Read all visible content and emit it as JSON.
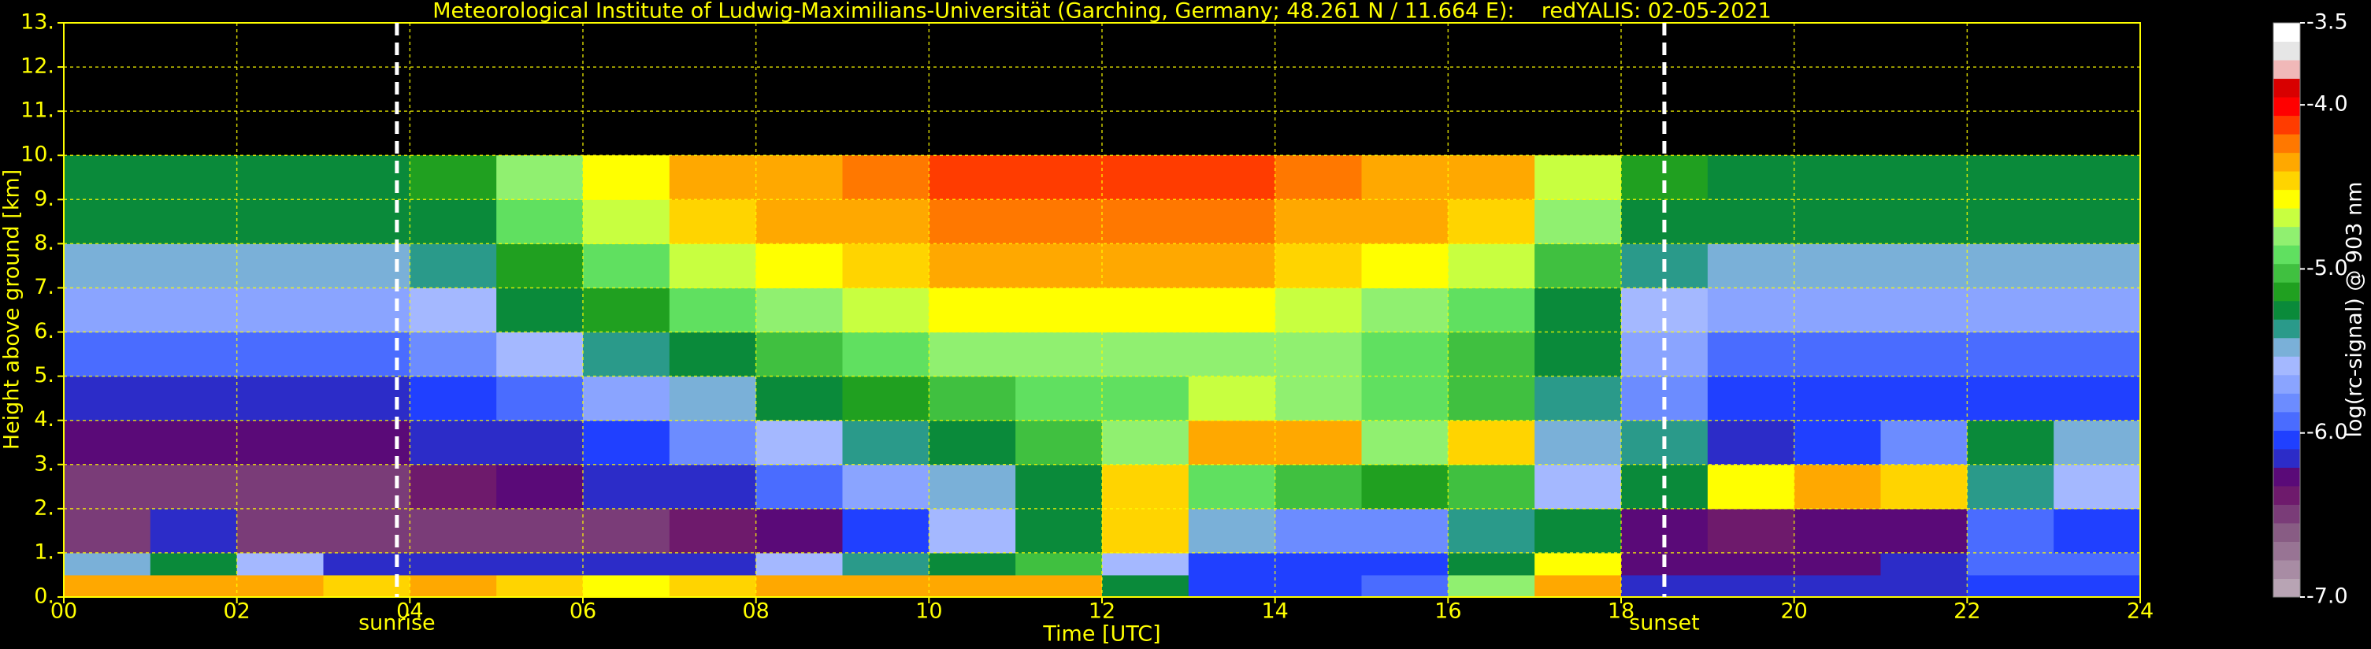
{
  "chart_data": {
    "type": "heatmap",
    "title": "Meteorological Institute of Ludwig-Maximilians-Universität (Garching, Germany; 48.261 N / 11.664 E):    redYALIS: 02-05-2021",
    "x_label": "Time [UTC]",
    "y_label": "Height above ground [km]",
    "colorbar_label": "log(rc-signal) @ 903 nm",
    "xlim": [
      0,
      24
    ],
    "ylim": [
      0,
      13
    ],
    "xticks": [
      {
        "value": 0,
        "label": "00"
      },
      {
        "value": 2,
        "label": "02"
      },
      {
        "value": 4,
        "label": "04"
      },
      {
        "value": 6,
        "label": "06"
      },
      {
        "value": 8,
        "label": "08"
      },
      {
        "value": 10,
        "label": "10"
      },
      {
        "value": 12,
        "label": "12"
      },
      {
        "value": 14,
        "label": "14"
      },
      {
        "value": 16,
        "label": "16"
      },
      {
        "value": 18,
        "label": "18"
      },
      {
        "value": 20,
        "label": "20"
      },
      {
        "value": 22,
        "label": "22"
      },
      {
        "value": 24,
        "label": "24"
      }
    ],
    "yticks": [
      {
        "value": 0,
        "label": "0."
      },
      {
        "value": 1,
        "label": "1."
      },
      {
        "value": 2,
        "label": "2."
      },
      {
        "value": 3,
        "label": "3."
      },
      {
        "value": 4,
        "label": "4."
      },
      {
        "value": 5,
        "label": "5."
      },
      {
        "value": 6,
        "label": "6."
      },
      {
        "value": 7,
        "label": "7."
      },
      {
        "value": 8,
        "label": "8."
      },
      {
        "value": 9,
        "label": "9."
      },
      {
        "value": 10,
        "label": "10."
      },
      {
        "value": 11,
        "label": "11."
      },
      {
        "value": 12,
        "label": "12."
      },
      {
        "value": 13,
        "label": "13."
      }
    ],
    "grid": true,
    "zlim": [
      -7,
      -3.5
    ],
    "zticks": [
      {
        "value": -7,
        "label": "-7.0"
      },
      {
        "value": -6,
        "label": "-6.0"
      },
      {
        "value": -5,
        "label": "-5.0"
      },
      {
        "value": -4,
        "label": "-4.0"
      },
      {
        "value": -3.5,
        "label": "-3.5"
      }
    ],
    "colorscale": [
      "#b8a4b4",
      "#a88ca4",
      "#987494",
      "#885c84",
      "#7a3c78",
      "#6e1a6c",
      "#5a0a78",
      "#2c2cc8",
      "#2040ff",
      "#4a6cff",
      "#6c8cff",
      "#8aa4ff",
      "#a4b8ff",
      "#7ab0d8",
      "#2a9a8a",
      "#0a8a3a",
      "#20a020",
      "#40c040",
      "#60e060",
      "#90f070",
      "#c8ff40",
      "#ffff00",
      "#ffd400",
      "#ffa800",
      "#ff7800",
      "#ff3c00",
      "#ff0000",
      "#d80000",
      "#f0b8b8",
      "#e6e6e6",
      "#ffffff"
    ],
    "x_bins": [
      0,
      1,
      2,
      3,
      4,
      5,
      6,
      7,
      8,
      9,
      10,
      11,
      12,
      13,
      14,
      15,
      16,
      17,
      18,
      19,
      20,
      21,
      22,
      23,
      24
    ],
    "y_bins": [
      0,
      0.5,
      1,
      2,
      3,
      4,
      5,
      6,
      7,
      8,
      9,
      10
    ],
    "values": [
      [
        -4.3,
        -4.3,
        -4.4,
        -4.5,
        -4.4,
        -4.5,
        -4.6,
        -4.5,
        -4.4,
        -4.3,
        -4.3,
        -4.4,
        -5.2,
        -6.0,
        -6.0,
        -5.9,
        -4.8,
        -4.4,
        -6.1,
        -6.2,
        -6.1,
        -6.1,
        -6.0,
        -6.0
      ],
      [
        -5.5,
        -5.3,
        -5.6,
        -6.2,
        -6.1,
        -6.2,
        -6.2,
        -6.1,
        -5.6,
        -5.4,
        -5.2,
        -5.0,
        -5.6,
        -6.0,
        -6.0,
        -6.0,
        -5.3,
        -4.6,
        -6.3,
        -6.3,
        -6.3,
        -6.2,
        -5.9,
        -5.9
      ],
      [
        -6.5,
        -6.2,
        -6.5,
        -6.5,
        -6.5,
        -6.5,
        -6.5,
        -6.4,
        -6.3,
        -6.0,
        -5.6,
        -5.2,
        -4.5,
        -5.5,
        -5.8,
        -5.8,
        -5.4,
        -5.2,
        -6.3,
        -6.4,
        -6.3,
        -6.3,
        -5.9,
        -6.0
      ],
      [
        -6.5,
        -6.5,
        -6.5,
        -6.5,
        -6.4,
        -6.3,
        -6.2,
        -6.1,
        -5.9,
        -5.7,
        -5.5,
        -5.3,
        -4.5,
        -4.9,
        -5.0,
        -5.1,
        -5.0,
        -5.6,
        -5.3,
        -4.6,
        -4.4,
        -4.5,
        -5.4,
        -5.6
      ],
      [
        -6.3,
        -6.3,
        -6.3,
        -6.3,
        -6.2,
        -6.1,
        -6.0,
        -5.8,
        -5.6,
        -5.4,
        -5.2,
        -5.0,
        -4.8,
        -4.3,
        -4.3,
        -4.8,
        -4.5,
        -5.5,
        -5.4,
        -6.1,
        -6.0,
        -5.8,
        -5.3,
        -5.5
      ],
      [
        -6.1,
        -6.1,
        -6.1,
        -6.1,
        -6.0,
        -5.9,
        -5.7,
        -5.5,
        -5.3,
        -5.1,
        -5.0,
        -4.9,
        -4.9,
        -4.7,
        -4.8,
        -4.9,
        -5.0,
        -5.4,
        -5.8,
        -6.0,
        -6.0,
        -6.0,
        -6.0,
        -6.0
      ],
      [
        -5.9,
        -5.9,
        -5.9,
        -5.9,
        -5.8,
        -5.6,
        -5.4,
        -5.2,
        -5.0,
        -4.9,
        -4.8,
        -4.8,
        -4.8,
        -4.8,
        -4.8,
        -4.9,
        -5.0,
        -5.3,
        -5.7,
        -5.9,
        -5.9,
        -5.9,
        -5.9,
        -5.9
      ],
      [
        -5.7,
        -5.7,
        -5.7,
        -5.7,
        -5.6,
        -5.3,
        -5.1,
        -4.9,
        -4.8,
        -4.7,
        -4.6,
        -4.6,
        -4.6,
        -4.6,
        -4.7,
        -4.8,
        -4.9,
        -5.2,
        -5.6,
        -5.7,
        -5.7,
        -5.7,
        -5.7,
        -5.7
      ],
      [
        -5.5,
        -5.5,
        -5.5,
        -5.5,
        -5.4,
        -5.1,
        -4.9,
        -4.7,
        -4.6,
        -4.5,
        -4.4,
        -4.4,
        -4.4,
        -4.4,
        -4.5,
        -4.6,
        -4.7,
        -5.0,
        -5.4,
        -5.5,
        -5.5,
        -5.5,
        -5.5,
        -5.5
      ],
      [
        -5.3,
        -5.3,
        -5.3,
        -5.3,
        -5.2,
        -4.9,
        -4.7,
        -4.5,
        -4.4,
        -4.3,
        -4.2,
        -4.2,
        -4.2,
        -4.2,
        -4.3,
        -4.4,
        -4.5,
        -4.8,
        -5.2,
        -5.3,
        -5.3,
        -5.3,
        -5.3,
        -5.3
      ],
      [
        -5.2,
        -5.2,
        -5.2,
        -5.2,
        -5.1,
        -4.8,
        -4.6,
        -4.4,
        -4.3,
        -4.2,
        -4.1,
        -4.1,
        -4.1,
        -4.1,
        -4.2,
        -4.3,
        -4.4,
        -4.7,
        -5.1,
        -5.2,
        -5.2,
        -5.2,
        -5.2,
        -5.2
      ]
    ],
    "annotations": [
      {
        "text": "sunrise",
        "x": 3.85
      },
      {
        "text": "sunset",
        "x": 18.5
      }
    ]
  }
}
